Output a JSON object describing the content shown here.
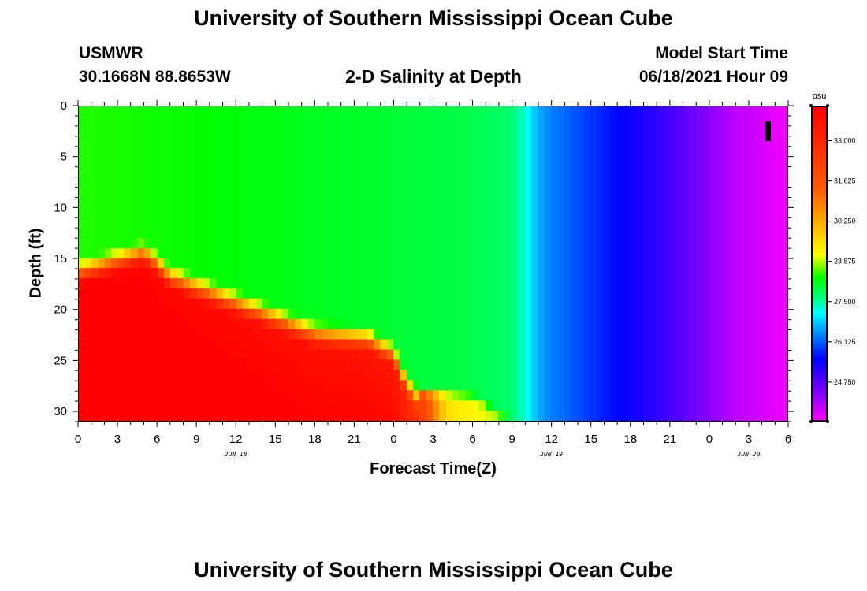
{
  "page": {
    "title_top": "University of Southern Mississippi Ocean Cube",
    "title_bottom": "University of Southern Mississippi Ocean Cube",
    "station_id": "USMWR",
    "station_coords": "30.1668N  88.8653W",
    "plot_title": "2-D Salinity at Depth",
    "model_label": "Model Start Time",
    "model_time": "06/18/2021 Hour 09"
  },
  "chart_data": {
    "type": "heatmap",
    "title": "2-D Salinity at Depth",
    "xlabel": "Forecast Time(Z)",
    "ylabel": "Depth (ft)",
    "colorbar_unit": "psu",
    "x_range_hours": [
      0,
      54
    ],
    "y_range_ft": [
      0,
      31
    ],
    "x_tick_labels": [
      "0",
      "3",
      "6",
      "9",
      "12",
      "15",
      "18",
      "21",
      "0",
      "3",
      "6",
      "9",
      "12",
      "15",
      "18",
      "21",
      "0",
      "3",
      "6"
    ],
    "y_tick_labels": [
      "0",
      "5",
      "10",
      "15",
      "20",
      "25",
      "30"
    ],
    "date_labels": [
      {
        "text": "JUN 18",
        "x_hour": 12
      },
      {
        "text": "JUN 19",
        "x_hour": 36
      },
      {
        "text": "JUN 20",
        "x_hour": 51
      }
    ],
    "colorbar": {
      "min": 23.4,
      "max": 34.2,
      "ticks": [
        33.0,
        31.625,
        30.25,
        28.875,
        27.5,
        26.125,
        24.75
      ],
      "tick_labels": [
        "33.000",
        "31.625",
        "30.250",
        "28.875",
        "27.500",
        "26.125",
        "24.750"
      ],
      "colors": [
        {
          "value": 23.4,
          "color": "#ff00ff"
        },
        {
          "value": 24.1,
          "color": "#a000ff"
        },
        {
          "value": 25.5,
          "color": "#0000ff"
        },
        {
          "value": 26.3,
          "color": "#0080ff"
        },
        {
          "value": 27.1,
          "color": "#00ffff"
        },
        {
          "value": 27.6,
          "color": "#00ff80"
        },
        {
          "value": 28.3,
          "color": "#00ff00"
        },
        {
          "value": 29.1,
          "color": "#ffff00"
        },
        {
          "value": 31.3,
          "color": "#ff6000"
        },
        {
          "value": 34.2,
          "color": "#ff0000"
        }
      ]
    },
    "surface_salinity_psu": [
      {
        "hour": 0,
        "value": 28.4
      },
      {
        "hour": 10,
        "value": 28.3
      },
      {
        "hour": 20,
        "value": 28.1
      },
      {
        "hour": 30,
        "value": 27.9
      },
      {
        "hour": 33,
        "value": 27.7
      },
      {
        "hour": 34,
        "value": 27.3
      },
      {
        "hour": 35,
        "value": 26.6
      },
      {
        "hour": 36,
        "value": 26.3
      },
      {
        "hour": 38,
        "value": 26.0
      },
      {
        "hour": 40,
        "value": 25.7
      },
      {
        "hour": 42,
        "value": 25.4
      },
      {
        "hour": 44,
        "value": 25.1
      },
      {
        "hour": 46,
        "value": 24.7
      },
      {
        "hour": 48,
        "value": 24.3
      },
      {
        "hour": 50,
        "value": 23.9
      },
      {
        "hour": 54,
        "value": 23.5
      }
    ],
    "halocline_depth_ft": [
      {
        "hour": 0,
        "value": 15
      },
      {
        "hour": 5,
        "value": 13
      },
      {
        "hour": 7,
        "value": 15.5
      },
      {
        "hour": 12,
        "value": 18
      },
      {
        "hour": 16,
        "value": 20
      },
      {
        "hour": 18,
        "value": 21
      },
      {
        "hour": 22,
        "value": 21.5
      },
      {
        "hour": 24,
        "value": 23
      },
      {
        "hour": 25,
        "value": 26
      },
      {
        "hour": 26,
        "value": 27.5
      },
      {
        "hour": 30,
        "value": 28
      },
      {
        "hour": 34,
        "value": 31
      },
      {
        "hour": 54,
        "value": 31
      }
    ],
    "bottom_salinity_psu": [
      {
        "hour": 0,
        "value": 34.2
      },
      {
        "hour": 24,
        "value": 33.6
      },
      {
        "hour": 26,
        "value": 32.5
      },
      {
        "hour": 28,
        "value": 29.5
      },
      {
        "hour": 32,
        "value": 28.8
      },
      {
        "hour": 34,
        "value": 27.8
      }
    ],
    "grid": false
  }
}
